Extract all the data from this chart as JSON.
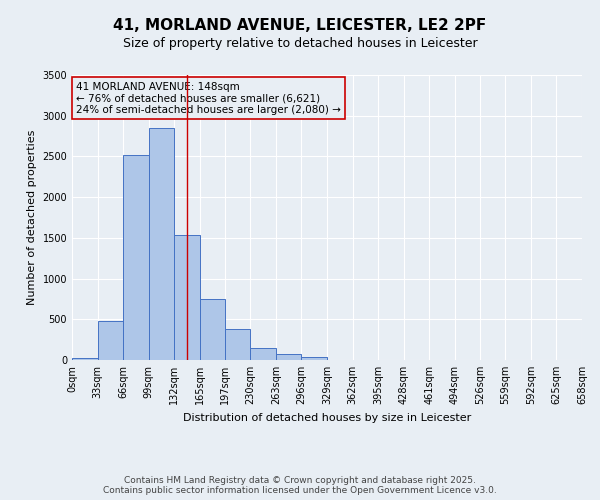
{
  "title_line1": "41, MORLAND AVENUE, LEICESTER, LE2 2PF",
  "title_line2": "Size of property relative to detached houses in Leicester",
  "xlabel": "Distribution of detached houses by size in Leicester",
  "ylabel": "Number of detached properties",
  "bin_edges": [
    0,
    33,
    66,
    99,
    132,
    165,
    197,
    230,
    263,
    296,
    329,
    362,
    395,
    428,
    461,
    494,
    526,
    559,
    592,
    625,
    658
  ],
  "bin_labels": [
    "0sqm",
    "33sqm",
    "66sqm",
    "99sqm",
    "132sqm",
    "165sqm",
    "197sqm",
    "230sqm",
    "263sqm",
    "296sqm",
    "329sqm",
    "362sqm",
    "395sqm",
    "428sqm",
    "461sqm",
    "494sqm",
    "526sqm",
    "559sqm",
    "592sqm",
    "625sqm",
    "658sqm"
  ],
  "bar_heights": [
    25,
    480,
    2520,
    2850,
    1530,
    745,
    380,
    145,
    75,
    40,
    5,
    0,
    0,
    0,
    0,
    0,
    0,
    0,
    0,
    0
  ],
  "bar_color": "#aec6e8",
  "bar_edge_color": "#4472c4",
  "bg_color": "#e8eef4",
  "grid_color": "#ffffff",
  "property_line_x": 148,
  "property_line_color": "#cc0000",
  "annotation_text": "41 MORLAND AVENUE: 148sqm\n← 76% of detached houses are smaller (6,621)\n24% of semi-detached houses are larger (2,080) →",
  "annotation_box_color": "#cc0000",
  "ylim": [
    0,
    3500
  ],
  "yticks": [
    0,
    500,
    1000,
    1500,
    2000,
    2500,
    3000,
    3500
  ],
  "footer_line1": "Contains HM Land Registry data © Crown copyright and database right 2025.",
  "footer_line2": "Contains public sector information licensed under the Open Government Licence v3.0.",
  "title_fontsize": 11,
  "subtitle_fontsize": 9,
  "label_fontsize": 8,
  "tick_fontsize": 7,
  "footer_fontsize": 6.5,
  "annotation_fontsize": 7.5
}
